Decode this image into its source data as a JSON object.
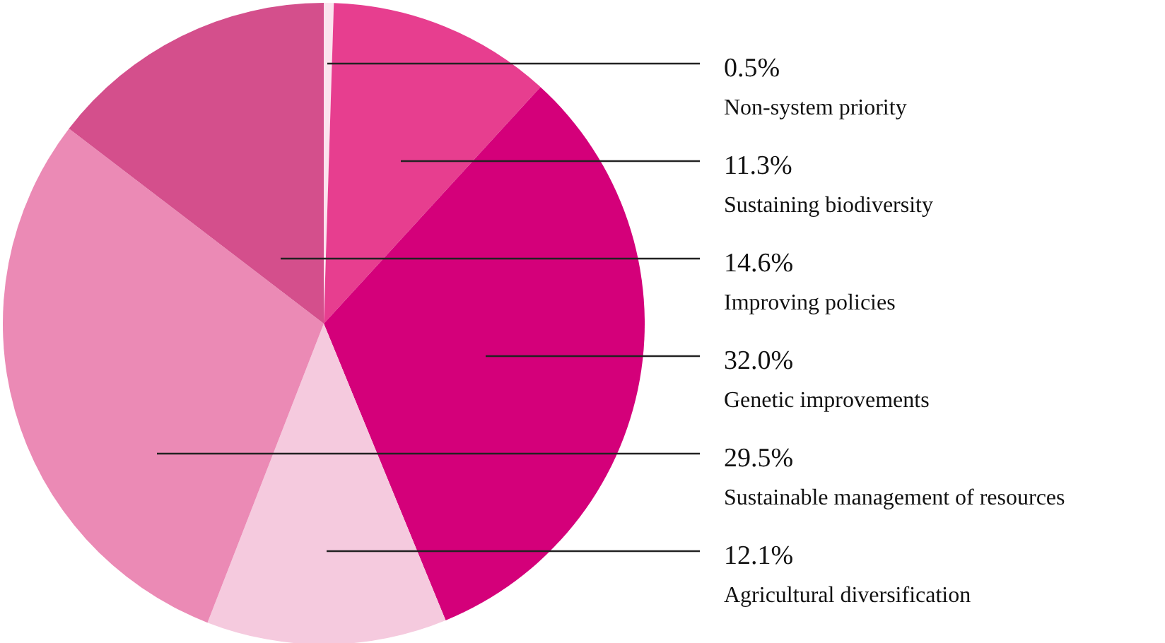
{
  "chart_data": {
    "type": "pie",
    "categories": [
      "Non-system priority",
      "Sustaining biodiversity",
      "Genetic improvements",
      "Agricultural diversification",
      "Sustainable management of resources",
      "Improving policies"
    ],
    "values": [
      0.5,
      11.3,
      32.0,
      12.1,
      29.5,
      14.6
    ],
    "value_labels": [
      "0.5%",
      "11.3%",
      "32.0%",
      "12.1%",
      "29.5%",
      "14.6%"
    ],
    "colors": [
      "#fbe3ee",
      "#e73e8f",
      "#d4007a",
      "#f5cade",
      "#eb8ab5",
      "#d44f8c"
    ]
  }
}
